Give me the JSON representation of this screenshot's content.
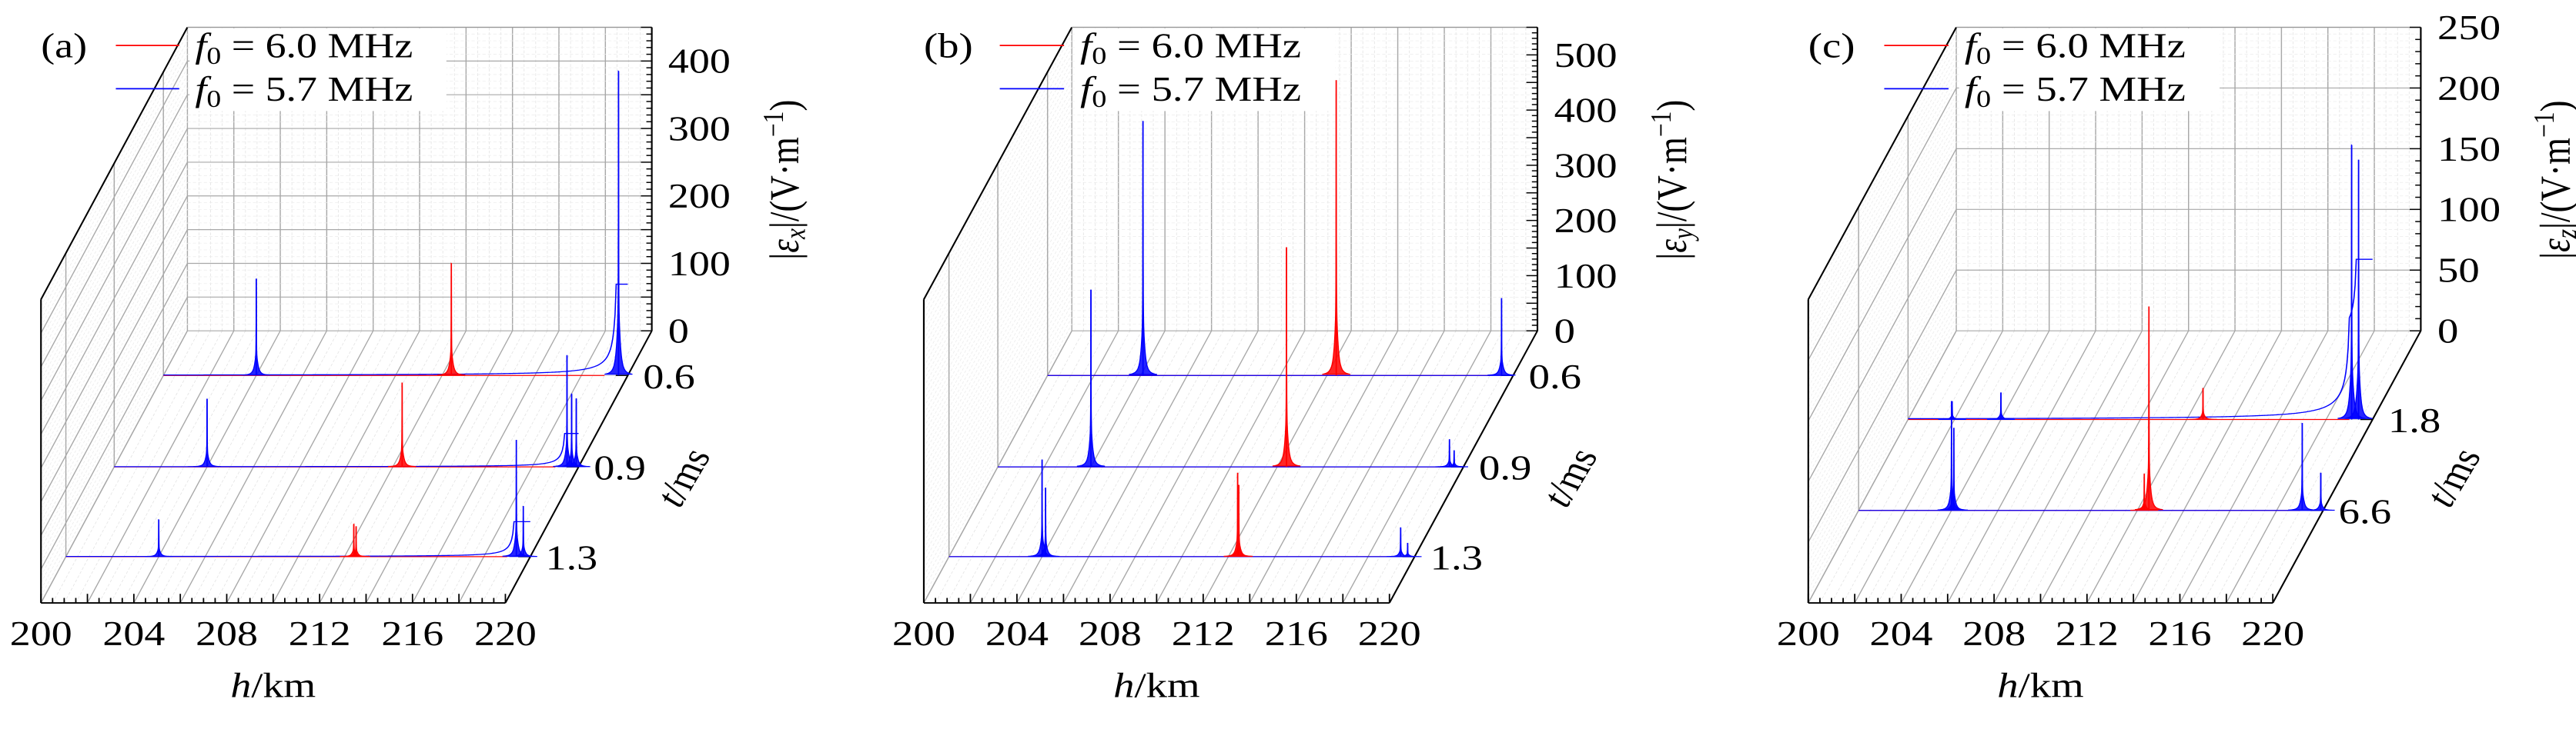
{
  "chart_data": [
    {
      "panel_label": "(a)",
      "type": "line",
      "subtype": "3d-waterfall",
      "xlabel": {
        "var": "h",
        "unit": "/km"
      },
      "ylabel": {
        "var": "t",
        "unit": "/ms"
      },
      "zlabel": {
        "pre": "|",
        "var": "ε",
        "sub": "x",
        "post": "|/(V·m",
        "sup": "−1",
        "end": ")"
      },
      "xlim": [
        200,
        220
      ],
      "xticks": [
        "200",
        "204",
        "208",
        "212",
        "216",
        "220"
      ],
      "tticks": [
        "0.6",
        "0.9",
        "1.3"
      ],
      "zlim": [
        0,
        450
      ],
      "zticks": [
        "0",
        "100",
        "200",
        "300",
        "400"
      ],
      "grid": true,
      "legend": {
        "position": "top-left",
        "entries": [
          {
            "var": "f",
            "sub": "0",
            "text": " = 6.0 MHz",
            "color": "#ff0000"
          },
          {
            "var": "f",
            "sub": "0",
            "text": " = 5.7 MHz",
            "color": "#0000ff"
          }
        ]
      },
      "series": [
        {
          "name": "f0 = 6.0 MHz",
          "color": "#ff0000",
          "traces": [
            {
              "t": "0.6",
              "peaks": [
                {
                  "h": 212.4,
                  "value": 166
                }
              ]
            },
            {
              "t": "0.9",
              "peaks": [
                {
                  "h": 212.4,
                  "value": 125
                }
              ]
            },
            {
              "t": "1.3",
              "peaks": [
                {
                  "h": 212.4,
                  "value": 48
                },
                {
                  "h": 212.5,
                  "value": 45
                }
              ]
            }
          ]
        },
        {
          "name": "f0 = 5.7 MHz",
          "color": "#0000ff",
          "traces": [
            {
              "t": "0.6",
              "peaks": [
                {
                  "h": 204.0,
                  "value": 143
                },
                {
                  "h": 219.6,
                  "value": 451
                }
              ]
            },
            {
              "t": "0.9",
              "peaks": [
                {
                  "h": 204.0,
                  "value": 101
                },
                {
                  "h": 219.5,
                  "value": 165
                },
                {
                  "h": 219.7,
                  "value": 108
                },
                {
                  "h": 219.9,
                  "value": 101
                }
              ]
            },
            {
              "t": "1.3",
              "peaks": [
                {
                  "h": 204.0,
                  "value": 55
                },
                {
                  "h": 219.4,
                  "value": 173
                },
                {
                  "h": 219.7,
                  "value": 75
                }
              ]
            }
          ]
        }
      ]
    },
    {
      "panel_label": "(b)",
      "type": "line",
      "subtype": "3d-waterfall",
      "xlabel": {
        "var": "h",
        "unit": "/km"
      },
      "ylabel": {
        "var": "t",
        "unit": "/ms"
      },
      "zlabel": {
        "pre": "|",
        "var": "ε",
        "sub": "y",
        "post": "|/(V·m",
        "sup": "−1",
        "end": ")"
      },
      "xlim": [
        200,
        220
      ],
      "xticks": [
        "200",
        "204",
        "208",
        "212",
        "216",
        "220"
      ],
      "tticks": [
        "0.6",
        "0.9",
        "1.3"
      ],
      "zlim": [
        0,
        550
      ],
      "zticks": [
        "0",
        "100",
        "200",
        "300",
        "400",
        "500"
      ],
      "grid": true,
      "legend": {
        "position": "top-left",
        "entries": [
          {
            "var": "f",
            "sub": "0",
            "text": " = 6.0 MHz",
            "color": "#ff0000"
          },
          {
            "var": "f",
            "sub": "0",
            "text": " = 5.7 MHz",
            "color": "#0000ff"
          }
        ]
      },
      "series": [
        {
          "name": "f0 = 6.0 MHz",
          "color": "#ff0000",
          "traces": [
            {
              "t": "0.6",
              "peaks": [
                {
                  "h": 212.4,
                  "value": 535
                }
              ]
            },
            {
              "t": "0.9",
              "peaks": [
                {
                  "h": 212.4,
                  "value": 398
                }
              ]
            },
            {
              "t": "1.3",
              "peaks": [
                {
                  "h": 212.4,
                  "value": 152
                },
                {
                  "h": 212.45,
                  "value": 130
                }
              ]
            }
          ]
        },
        {
          "name": "f0 = 5.7 MHz",
          "color": "#0000ff",
          "traces": [
            {
              "t": "0.6",
              "peaks": [
                {
                  "h": 204.1,
                  "value": 461
                },
                {
                  "h": 219.5,
                  "value": 140
                }
              ]
            },
            {
              "t": "0.9",
              "peaks": [
                {
                  "h": 204.0,
                  "value": 321
                },
                {
                  "h": 219.4,
                  "value": 50
                },
                {
                  "h": 219.6,
                  "value": 30
                }
              ]
            },
            {
              "t": "1.3",
              "peaks": [
                {
                  "h": 204.0,
                  "value": 176
                },
                {
                  "h": 204.15,
                  "value": 125
                },
                {
                  "h": 219.4,
                  "value": 53
                },
                {
                  "h": 219.7,
                  "value": 25
                }
              ]
            }
          ]
        }
      ]
    },
    {
      "panel_label": "(c)",
      "type": "line",
      "subtype": "3d-waterfall",
      "xlabel": {
        "var": "h",
        "unit": "/km"
      },
      "ylabel": {
        "var": "t",
        "unit": "/ms"
      },
      "zlabel": {
        "pre": "|",
        "var": "ε",
        "sub": "z",
        "post": "|/(V·m",
        "sup": "−1",
        "end": ")"
      },
      "xlim": [
        200,
        220
      ],
      "xticks": [
        "200",
        "204",
        "208",
        "212",
        "216",
        "220"
      ],
      "tticks": [
        "1.8",
        "6.6"
      ],
      "zlim": [
        0,
        250
      ],
      "zticks": [
        "0",
        "50",
        "100",
        "150",
        "200",
        "250"
      ],
      "grid": true,
      "legend": {
        "position": "top-left",
        "entries": [
          {
            "var": "f",
            "sub": "0",
            "text": " = 6.0 MHz",
            "color": "#ff0000"
          },
          {
            "var": "f",
            "sub": "0",
            "text": " = 5.7 MHz",
            "color": "#0000ff"
          }
        ]
      },
      "series": [
        {
          "name": "f0 = 6.0 MHz",
          "color": "#ff0000",
          "traces": [
            {
              "t": "1.8",
              "peaks": [
                {
                  "h": 212.7,
                  "value": 26
                }
              ]
            },
            {
              "t": "6.6",
              "peaks": [
                {
                  "h": 212.3,
                  "value": 30
                },
                {
                  "h": 212.5,
                  "value": 168
                }
              ]
            }
          ]
        },
        {
          "name": "f0 = 5.7 MHz",
          "color": "#0000ff",
          "traces": [
            {
              "t": "1.8",
              "peaks": [
                {
                  "h": 201.9,
                  "value": 15
                },
                {
                  "h": 204.0,
                  "value": 22
                },
                {
                  "h": 219.1,
                  "value": 226
                },
                {
                  "h": 219.4,
                  "value": 214
                }
              ]
            },
            {
              "t": "6.6",
              "peaks": [
                {
                  "h": 204.0,
                  "value": 90
                },
                {
                  "h": 204.1,
                  "value": 68
                },
                {
                  "h": 219.1,
                  "value": 72
                },
                {
                  "h": 219.9,
                  "value": 31
                }
              ]
            }
          ]
        }
      ]
    }
  ]
}
